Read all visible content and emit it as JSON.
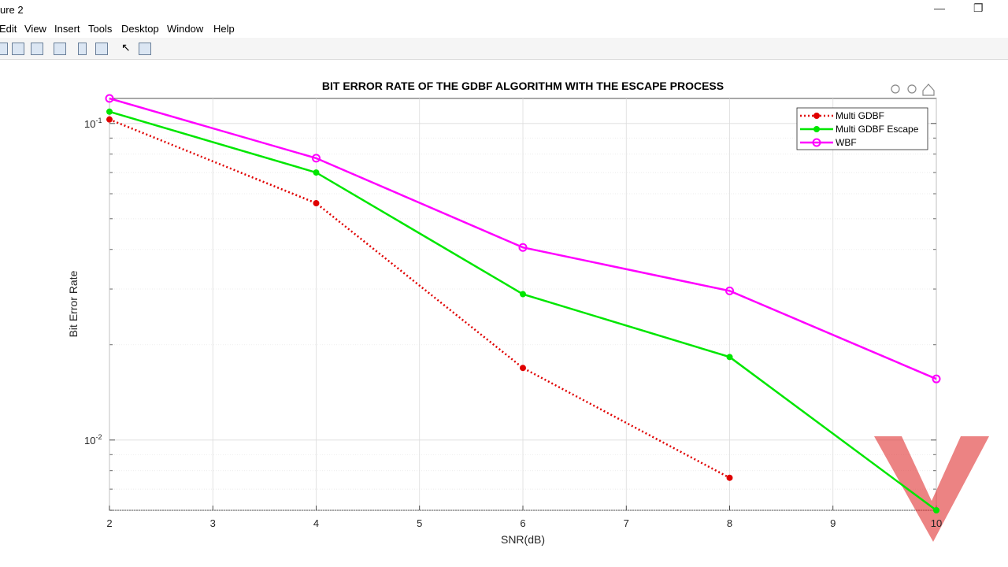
{
  "window": {
    "title": "ure 2",
    "menu": [
      "Edit",
      "View",
      "Insert",
      "Tools",
      "Desktop",
      "Window",
      "Help"
    ]
  },
  "chart_data": {
    "type": "line",
    "title": "BIT ERROR RATE OF THE GDBF ALGORITHM WITH THE ESCAPE PROCESS",
    "xlabel": "SNR(dB)",
    "ylabel": "Bit Error Rate",
    "x": [
      2,
      4,
      6,
      8,
      10
    ],
    "series": [
      {
        "name": "Multi GDBF",
        "color": "#e00000",
        "linestyle": "dotted",
        "marker": "dot",
        "values": [
          0.103,
          0.056,
          0.0169,
          0.0076,
          null
        ]
      },
      {
        "name": "Multi GDBF Escape",
        "color": "#00e600",
        "linestyle": "solid",
        "marker": "dot",
        "values": [
          0.109,
          0.07,
          0.0289,
          0.0183,
          0.006
        ]
      },
      {
        "name": "WBF",
        "color": "#ff00ff",
        "linestyle": "solid",
        "marker": "circle",
        "values": [
          0.12,
          0.0777,
          0.0406,
          0.0296,
          0.0156
        ]
      }
    ],
    "xlim": [
      2,
      10
    ],
    "xticks": [
      2,
      3,
      4,
      5,
      6,
      7,
      8,
      9,
      10
    ],
    "ylim": [
      0.006,
      0.12
    ],
    "yscale": "log",
    "yticks": [
      {
        "value": 0.01,
        "label": "10",
        "exponent": "-2"
      },
      {
        "value": 0.1,
        "label": "10",
        "exponent": "-1"
      }
    ],
    "grid": true,
    "minor_grid": true,
    "legend": "northeast"
  }
}
